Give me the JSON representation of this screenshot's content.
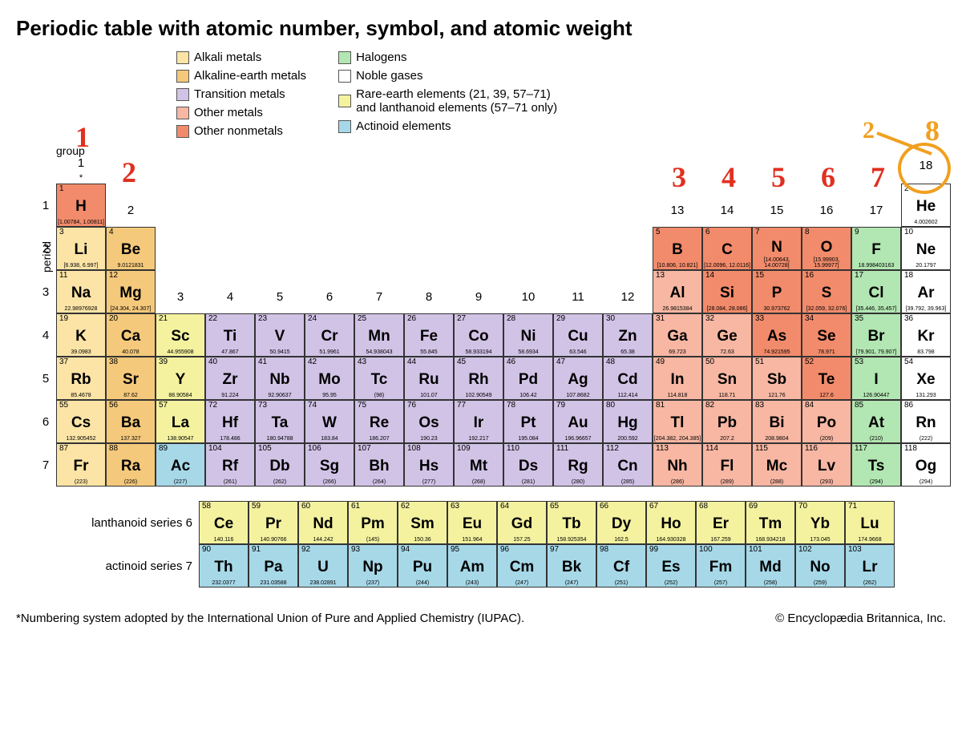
{
  "title": "Periodic table with atomic number, symbol, and atomic weight",
  "labels": {
    "period": "period",
    "group": "group",
    "star": "*",
    "lanth": "lanthanoid series  6",
    "act": "actinoid series  7",
    "footnote": "*Numbering system adopted by the International Union of Pure and Applied Chemistry (IUPAC).",
    "copyright": "© Encyclopædia Britannica, Inc."
  },
  "colors": {
    "alkali": "#fbe4a6",
    "alkaline_earth": "#f5c97b",
    "transition": "#d1c3e6",
    "other_metals": "#f7b7a3",
    "other_nonmetals": "#f28b6b",
    "halogens": "#b2e6b2",
    "noble": "#ffffff",
    "rare_earth": "#f4f29f",
    "actinoid": "#a6d8e8",
    "annotation_red": "#e03020",
    "annotation_orange": "#f0a020"
  },
  "legend": [
    {
      "label": "Alkali metals",
      "colorKey": "alkali"
    },
    {
      "label": "Alkaline-earth metals",
      "colorKey": "alkaline_earth"
    },
    {
      "label": "Transition metals",
      "colorKey": "transition"
    },
    {
      "label": "Other metals",
      "colorKey": "other_metals"
    },
    {
      "label": "Other nonmetals",
      "colorKey": "other_nonmetals"
    },
    {
      "label": "Halogens",
      "colorKey": "halogens"
    },
    {
      "label": "Noble gases",
      "colorKey": "noble"
    },
    {
      "label": "Rare-earth elements (21, 39, 57–71)\nand lanthanoid elements (57–71 only)",
      "colorKey": "rare_earth"
    },
    {
      "label": "Actinoid elements",
      "colorKey": "actinoid"
    }
  ],
  "annotations": {
    "n1": "1",
    "n2": "2",
    "n3": "3",
    "n4": "4",
    "n5": "5",
    "n6": "6",
    "n7": "7",
    "n8": "8",
    "two_orange": "2"
  },
  "elements": [
    {
      "n": 1,
      "s": "H",
      "w": "[1.00784, 1.00811]",
      "p": 1,
      "g": 1,
      "c": "other_nonmetals"
    },
    {
      "n": 2,
      "s": "He",
      "w": "4.002602",
      "p": 1,
      "g": 18,
      "c": "noble"
    },
    {
      "n": 3,
      "s": "Li",
      "w": "[6.938, 6.997]",
      "p": 2,
      "g": 1,
      "c": "alkali"
    },
    {
      "n": 4,
      "s": "Be",
      "w": "9.0121831",
      "p": 2,
      "g": 2,
      "c": "alkaline_earth"
    },
    {
      "n": 5,
      "s": "B",
      "w": "[10.806, 10.821]",
      "p": 2,
      "g": 13,
      "c": "other_nonmetals"
    },
    {
      "n": 6,
      "s": "C",
      "w": "[12.0096, 12.0116]",
      "p": 2,
      "g": 14,
      "c": "other_nonmetals"
    },
    {
      "n": 7,
      "s": "N",
      "w": "[14.00643, 14.00728]",
      "p": 2,
      "g": 15,
      "c": "other_nonmetals"
    },
    {
      "n": 8,
      "s": "O",
      "w": "[15.99903, 15.99977]",
      "p": 2,
      "g": 16,
      "c": "other_nonmetals"
    },
    {
      "n": 9,
      "s": "F",
      "w": "18.998403163",
      "p": 2,
      "g": 17,
      "c": "halogens"
    },
    {
      "n": 10,
      "s": "Ne",
      "w": "20.1797",
      "p": 2,
      "g": 18,
      "c": "noble"
    },
    {
      "n": 11,
      "s": "Na",
      "w": "22.98976928",
      "p": 3,
      "g": 1,
      "c": "alkali"
    },
    {
      "n": 12,
      "s": "Mg",
      "w": "[24.304, 24.307]",
      "p": 3,
      "g": 2,
      "c": "alkaline_earth"
    },
    {
      "n": 13,
      "s": "Al",
      "w": "26.9815384",
      "p": 3,
      "g": 13,
      "c": "other_metals"
    },
    {
      "n": 14,
      "s": "Si",
      "w": "[28.084, 28.086]",
      "p": 3,
      "g": 14,
      "c": "other_nonmetals"
    },
    {
      "n": 15,
      "s": "P",
      "w": "30.973762",
      "p": 3,
      "g": 15,
      "c": "other_nonmetals"
    },
    {
      "n": 16,
      "s": "S",
      "w": "[32.059, 32.076]",
      "p": 3,
      "g": 16,
      "c": "other_nonmetals"
    },
    {
      "n": 17,
      "s": "Cl",
      "w": "[35.446, 35.457]",
      "p": 3,
      "g": 17,
      "c": "halogens"
    },
    {
      "n": 18,
      "s": "Ar",
      "w": "[39.792, 39.963]",
      "p": 3,
      "g": 18,
      "c": "noble"
    },
    {
      "n": 19,
      "s": "K",
      "w": "39.0983",
      "p": 4,
      "g": 1,
      "c": "alkali"
    },
    {
      "n": 20,
      "s": "Ca",
      "w": "40.078",
      "p": 4,
      "g": 2,
      "c": "alkaline_earth"
    },
    {
      "n": 21,
      "s": "Sc",
      "w": "44.955908",
      "p": 4,
      "g": 3,
      "c": "rare_earth"
    },
    {
      "n": 22,
      "s": "Ti",
      "w": "47.867",
      "p": 4,
      "g": 4,
      "c": "transition"
    },
    {
      "n": 23,
      "s": "V",
      "w": "50.9415",
      "p": 4,
      "g": 5,
      "c": "transition"
    },
    {
      "n": 24,
      "s": "Cr",
      "w": "51.9961",
      "p": 4,
      "g": 6,
      "c": "transition"
    },
    {
      "n": 25,
      "s": "Mn",
      "w": "54.938043",
      "p": 4,
      "g": 7,
      "c": "transition"
    },
    {
      "n": 26,
      "s": "Fe",
      "w": "55.845",
      "p": 4,
      "g": 8,
      "c": "transition"
    },
    {
      "n": 27,
      "s": "Co",
      "w": "58.933194",
      "p": 4,
      "g": 9,
      "c": "transition"
    },
    {
      "n": 28,
      "s": "Ni",
      "w": "58.6934",
      "p": 4,
      "g": 10,
      "c": "transition"
    },
    {
      "n": 29,
      "s": "Cu",
      "w": "63.546",
      "p": 4,
      "g": 11,
      "c": "transition"
    },
    {
      "n": 30,
      "s": "Zn",
      "w": "65.38",
      "p": 4,
      "g": 12,
      "c": "transition"
    },
    {
      "n": 31,
      "s": "Ga",
      "w": "69.723",
      "p": 4,
      "g": 13,
      "c": "other_metals"
    },
    {
      "n": 32,
      "s": "Ge",
      "w": "72.63",
      "p": 4,
      "g": 14,
      "c": "other_metals"
    },
    {
      "n": 33,
      "s": "As",
      "w": "74.921595",
      "p": 4,
      "g": 15,
      "c": "other_nonmetals"
    },
    {
      "n": 34,
      "s": "Se",
      "w": "78.971",
      "p": 4,
      "g": 16,
      "c": "other_nonmetals"
    },
    {
      "n": 35,
      "s": "Br",
      "w": "[79.901, 79.907]",
      "p": 4,
      "g": 17,
      "c": "halogens"
    },
    {
      "n": 36,
      "s": "Kr",
      "w": "83.798",
      "p": 4,
      "g": 18,
      "c": "noble"
    },
    {
      "n": 37,
      "s": "Rb",
      "w": "85.4678",
      "p": 5,
      "g": 1,
      "c": "alkali"
    },
    {
      "n": 38,
      "s": "Sr",
      "w": "87.62",
      "p": 5,
      "g": 2,
      "c": "alkaline_earth"
    },
    {
      "n": 39,
      "s": "Y",
      "w": "88.90584",
      "p": 5,
      "g": 3,
      "c": "rare_earth"
    },
    {
      "n": 40,
      "s": "Zr",
      "w": "91.224",
      "p": 5,
      "g": 4,
      "c": "transition"
    },
    {
      "n": 41,
      "s": "Nb",
      "w": "92.90637",
      "p": 5,
      "g": 5,
      "c": "transition"
    },
    {
      "n": 42,
      "s": "Mo",
      "w": "95.95",
      "p": 5,
      "g": 6,
      "c": "transition"
    },
    {
      "n": 43,
      "s": "Tc",
      "w": "(98)",
      "p": 5,
      "g": 7,
      "c": "transition"
    },
    {
      "n": 44,
      "s": "Ru",
      "w": "101.07",
      "p": 5,
      "g": 8,
      "c": "transition"
    },
    {
      "n": 45,
      "s": "Rh",
      "w": "102.90549",
      "p": 5,
      "g": 9,
      "c": "transition"
    },
    {
      "n": 46,
      "s": "Pd",
      "w": "106.42",
      "p": 5,
      "g": 10,
      "c": "transition"
    },
    {
      "n": 47,
      "s": "Ag",
      "w": "107.8682",
      "p": 5,
      "g": 11,
      "c": "transition"
    },
    {
      "n": 48,
      "s": "Cd",
      "w": "112.414",
      "p": 5,
      "g": 12,
      "c": "transition"
    },
    {
      "n": 49,
      "s": "In",
      "w": "114.818",
      "p": 5,
      "g": 13,
      "c": "other_metals"
    },
    {
      "n": 50,
      "s": "Sn",
      "w": "118.71",
      "p": 5,
      "g": 14,
      "c": "other_metals"
    },
    {
      "n": 51,
      "s": "Sb",
      "w": "121.76",
      "p": 5,
      "g": 15,
      "c": "other_metals"
    },
    {
      "n": 52,
      "s": "Te",
      "w": "127.6",
      "p": 5,
      "g": 16,
      "c": "other_nonmetals"
    },
    {
      "n": 53,
      "s": "I",
      "w": "126.90447",
      "p": 5,
      "g": 17,
      "c": "halogens"
    },
    {
      "n": 54,
      "s": "Xe",
      "w": "131.293",
      "p": 5,
      "g": 18,
      "c": "noble"
    },
    {
      "n": 55,
      "s": "Cs",
      "w": "132.905452",
      "p": 6,
      "g": 1,
      "c": "alkali"
    },
    {
      "n": 56,
      "s": "Ba",
      "w": "137.327",
      "p": 6,
      "g": 2,
      "c": "alkaline_earth"
    },
    {
      "n": 57,
      "s": "La",
      "w": "138.90547",
      "p": 6,
      "g": 3,
      "c": "rare_earth"
    },
    {
      "n": 72,
      "s": "Hf",
      "w": "178.486",
      "p": 6,
      "g": 4,
      "c": "transition"
    },
    {
      "n": 73,
      "s": "Ta",
      "w": "180.94788",
      "p": 6,
      "g": 5,
      "c": "transition"
    },
    {
      "n": 74,
      "s": "W",
      "w": "183.84",
      "p": 6,
      "g": 6,
      "c": "transition"
    },
    {
      "n": 75,
      "s": "Re",
      "w": "186.207",
      "p": 6,
      "g": 7,
      "c": "transition"
    },
    {
      "n": 76,
      "s": "Os",
      "w": "190.23",
      "p": 6,
      "g": 8,
      "c": "transition"
    },
    {
      "n": 77,
      "s": "Ir",
      "w": "192.217",
      "p": 6,
      "g": 9,
      "c": "transition"
    },
    {
      "n": 78,
      "s": "Pt",
      "w": "195.084",
      "p": 6,
      "g": 10,
      "c": "transition"
    },
    {
      "n": 79,
      "s": "Au",
      "w": "196.96657",
      "p": 6,
      "g": 11,
      "c": "transition"
    },
    {
      "n": 80,
      "s": "Hg",
      "w": "200.592",
      "p": 6,
      "g": 12,
      "c": "transition"
    },
    {
      "n": 81,
      "s": "Tl",
      "w": "[204.382, 204.385]",
      "p": 6,
      "g": 13,
      "c": "other_metals"
    },
    {
      "n": 82,
      "s": "Pb",
      "w": "207.2",
      "p": 6,
      "g": 14,
      "c": "other_metals"
    },
    {
      "n": 83,
      "s": "Bi",
      "w": "208.9804",
      "p": 6,
      "g": 15,
      "c": "other_metals"
    },
    {
      "n": 84,
      "s": "Po",
      "w": "(209)",
      "p": 6,
      "g": 16,
      "c": "other_metals"
    },
    {
      "n": 85,
      "s": "At",
      "w": "(210)",
      "p": 6,
      "g": 17,
      "c": "halogens"
    },
    {
      "n": 86,
      "s": "Rn",
      "w": "(222)",
      "p": 6,
      "g": 18,
      "c": "noble"
    },
    {
      "n": 87,
      "s": "Fr",
      "w": "(223)",
      "p": 7,
      "g": 1,
      "c": "alkali"
    },
    {
      "n": 88,
      "s": "Ra",
      "w": "(226)",
      "p": 7,
      "g": 2,
      "c": "alkaline_earth"
    },
    {
      "n": 89,
      "s": "Ac",
      "w": "(227)",
      "p": 7,
      "g": 3,
      "c": "actinoid"
    },
    {
      "n": 104,
      "s": "Rf",
      "w": "(261)",
      "p": 7,
      "g": 4,
      "c": "transition"
    },
    {
      "n": 105,
      "s": "Db",
      "w": "(262)",
      "p": 7,
      "g": 5,
      "c": "transition"
    },
    {
      "n": 106,
      "s": "Sg",
      "w": "(266)",
      "p": 7,
      "g": 6,
      "c": "transition"
    },
    {
      "n": 107,
      "s": "Bh",
      "w": "(264)",
      "p": 7,
      "g": 7,
      "c": "transition"
    },
    {
      "n": 108,
      "s": "Hs",
      "w": "(277)",
      "p": 7,
      "g": 8,
      "c": "transition"
    },
    {
      "n": 109,
      "s": "Mt",
      "w": "(268)",
      "p": 7,
      "g": 9,
      "c": "transition"
    },
    {
      "n": 110,
      "s": "Ds",
      "w": "(281)",
      "p": 7,
      "g": 10,
      "c": "transition"
    },
    {
      "n": 111,
      "s": "Rg",
      "w": "(280)",
      "p": 7,
      "g": 11,
      "c": "transition"
    },
    {
      "n": 112,
      "s": "Cn",
      "w": "(285)",
      "p": 7,
      "g": 12,
      "c": "transition"
    },
    {
      "n": 113,
      "s": "Nh",
      "w": "(286)",
      "p": 7,
      "g": 13,
      "c": "other_metals"
    },
    {
      "n": 114,
      "s": "Fl",
      "w": "(289)",
      "p": 7,
      "g": 14,
      "c": "other_metals"
    },
    {
      "n": 115,
      "s": "Mc",
      "w": "(288)",
      "p": 7,
      "g": 15,
      "c": "other_metals"
    },
    {
      "n": 116,
      "s": "Lv",
      "w": "(293)",
      "p": 7,
      "g": 16,
      "c": "other_metals"
    },
    {
      "n": 117,
      "s": "Ts",
      "w": "(294)",
      "p": 7,
      "g": 17,
      "c": "halogens"
    },
    {
      "n": 118,
      "s": "Og",
      "w": "(294)",
      "p": 7,
      "g": 18,
      "c": "noble"
    }
  ],
  "lanthanoids": [
    {
      "n": 58,
      "s": "Ce",
      "w": "140.116",
      "c": "rare_earth"
    },
    {
      "n": 59,
      "s": "Pr",
      "w": "140.90766",
      "c": "rare_earth"
    },
    {
      "n": 60,
      "s": "Nd",
      "w": "144.242",
      "c": "rare_earth"
    },
    {
      "n": 61,
      "s": "Pm",
      "w": "(145)",
      "c": "rare_earth"
    },
    {
      "n": 62,
      "s": "Sm",
      "w": "150.36",
      "c": "rare_earth"
    },
    {
      "n": 63,
      "s": "Eu",
      "w": "151.964",
      "c": "rare_earth"
    },
    {
      "n": 64,
      "s": "Gd",
      "w": "157.25",
      "c": "rare_earth"
    },
    {
      "n": 65,
      "s": "Tb",
      "w": "158.925354",
      "c": "rare_earth"
    },
    {
      "n": 66,
      "s": "Dy",
      "w": "162.5",
      "c": "rare_earth"
    },
    {
      "n": 67,
      "s": "Ho",
      "w": "164.930328",
      "c": "rare_earth"
    },
    {
      "n": 68,
      "s": "Er",
      "w": "167.259",
      "c": "rare_earth"
    },
    {
      "n": 69,
      "s": "Tm",
      "w": "168.934218",
      "c": "rare_earth"
    },
    {
      "n": 70,
      "s": "Yb",
      "w": "173.045",
      "c": "rare_earth"
    },
    {
      "n": 71,
      "s": "Lu",
      "w": "174.9668",
      "c": "rare_earth"
    }
  ],
  "actinoids": [
    {
      "n": 90,
      "s": "Th",
      "w": "232.0377",
      "c": "actinoid"
    },
    {
      "n": 91,
      "s": "Pa",
      "w": "231.03588",
      "c": "actinoid"
    },
    {
      "n": 92,
      "s": "U",
      "w": "238.02891",
      "c": "actinoid"
    },
    {
      "n": 93,
      "s": "Np",
      "w": "(237)",
      "c": "actinoid"
    },
    {
      "n": 94,
      "s": "Pu",
      "w": "(244)",
      "c": "actinoid"
    },
    {
      "n": 95,
      "s": "Am",
      "w": "(243)",
      "c": "actinoid"
    },
    {
      "n": 96,
      "s": "Cm",
      "w": "(247)",
      "c": "actinoid"
    },
    {
      "n": 97,
      "s": "Bk",
      "w": "(247)",
      "c": "actinoid"
    },
    {
      "n": 98,
      "s": "Cf",
      "w": "(251)",
      "c": "actinoid"
    },
    {
      "n": 99,
      "s": "Es",
      "w": "(252)",
      "c": "actinoid"
    },
    {
      "n": 100,
      "s": "Fm",
      "w": "(257)",
      "c": "actinoid"
    },
    {
      "n": 101,
      "s": "Md",
      "w": "(258)",
      "c": "actinoid"
    },
    {
      "n": 102,
      "s": "No",
      "w": "(259)",
      "c": "actinoid"
    },
    {
      "n": 103,
      "s": "Lr",
      "w": "(262)",
      "c": "actinoid"
    }
  ]
}
